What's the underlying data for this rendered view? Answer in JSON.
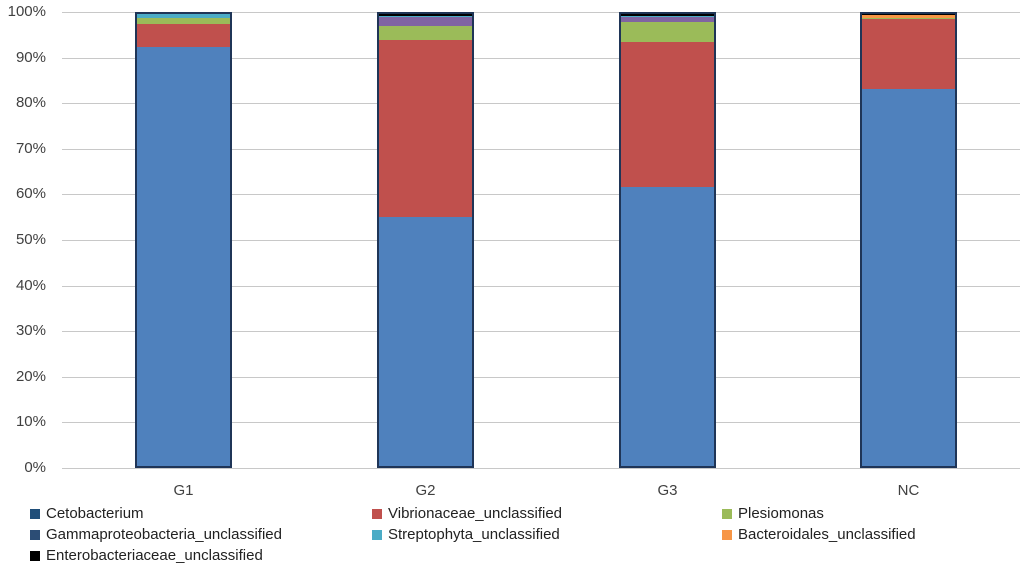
{
  "chart_data": {
    "type": "bar",
    "stacked": true,
    "normalized": true,
    "title": "",
    "xlabel": "",
    "ylabel": "",
    "ylim": [
      0,
      100
    ],
    "yticks": [
      "0%",
      "10%",
      "20%",
      "30%",
      "40%",
      "50%",
      "60%",
      "70%",
      "80%",
      "90%",
      "100%"
    ],
    "grid": true,
    "legend_position": "bottom",
    "categories": [
      "G1",
      "G2",
      "G3",
      "NC"
    ],
    "series": [
      {
        "name": "Cetobacterium",
        "color": "#4f81bd",
        "values": [
          92.8,
          55.1,
          61.7,
          83.4
        ]
      },
      {
        "name": "Vibrionaceae_unclassified",
        "color": "#c0504d",
        "values": [
          5.0,
          39.2,
          32.2,
          15.5
        ]
      },
      {
        "name": "Plesiomonas",
        "color": "#9bbb59",
        "values": [
          1.3,
          3.1,
          4.3,
          0.3
        ]
      },
      {
        "name": "Gammaproteobacteria_unclassified",
        "color": "#8064a2",
        "values": [
          0.0,
          2.0,
          1.2,
          0.0
        ]
      },
      {
        "name": "Streptophyta_unclassified",
        "color": "#4bacc6",
        "values": [
          0.9,
          0.2,
          0.2,
          0.0
        ]
      },
      {
        "name": "Bacteroidales_unclassified",
        "color": "#f79646",
        "values": [
          0.0,
          0.0,
          0.0,
          0.5
        ]
      },
      {
        "name": "Enterobacteriaceae_unclassified",
        "color": "#000000",
        "values": [
          0.0,
          0.4,
          0.4,
          0.3
        ]
      }
    ]
  },
  "legend": [
    {
      "label": "Cetobacterium",
      "color": "#1f4e79"
    },
    {
      "label": "Vibrionaceae_unclassified",
      "color": "#c0504d"
    },
    {
      "label": "Plesiomonas",
      "color": "#9bbb59"
    },
    {
      "label": "Gammaproteobacteria_unclassified",
      "color": "#2c4d75"
    },
    {
      "label": "Streptophyta_unclassified",
      "color": "#4bacc6"
    },
    {
      "label": "Bacteroidales_unclassified",
      "color": "#f79646"
    },
    {
      "label": "Enterobacteriaceae_unclassified",
      "color": "#000000"
    }
  ]
}
